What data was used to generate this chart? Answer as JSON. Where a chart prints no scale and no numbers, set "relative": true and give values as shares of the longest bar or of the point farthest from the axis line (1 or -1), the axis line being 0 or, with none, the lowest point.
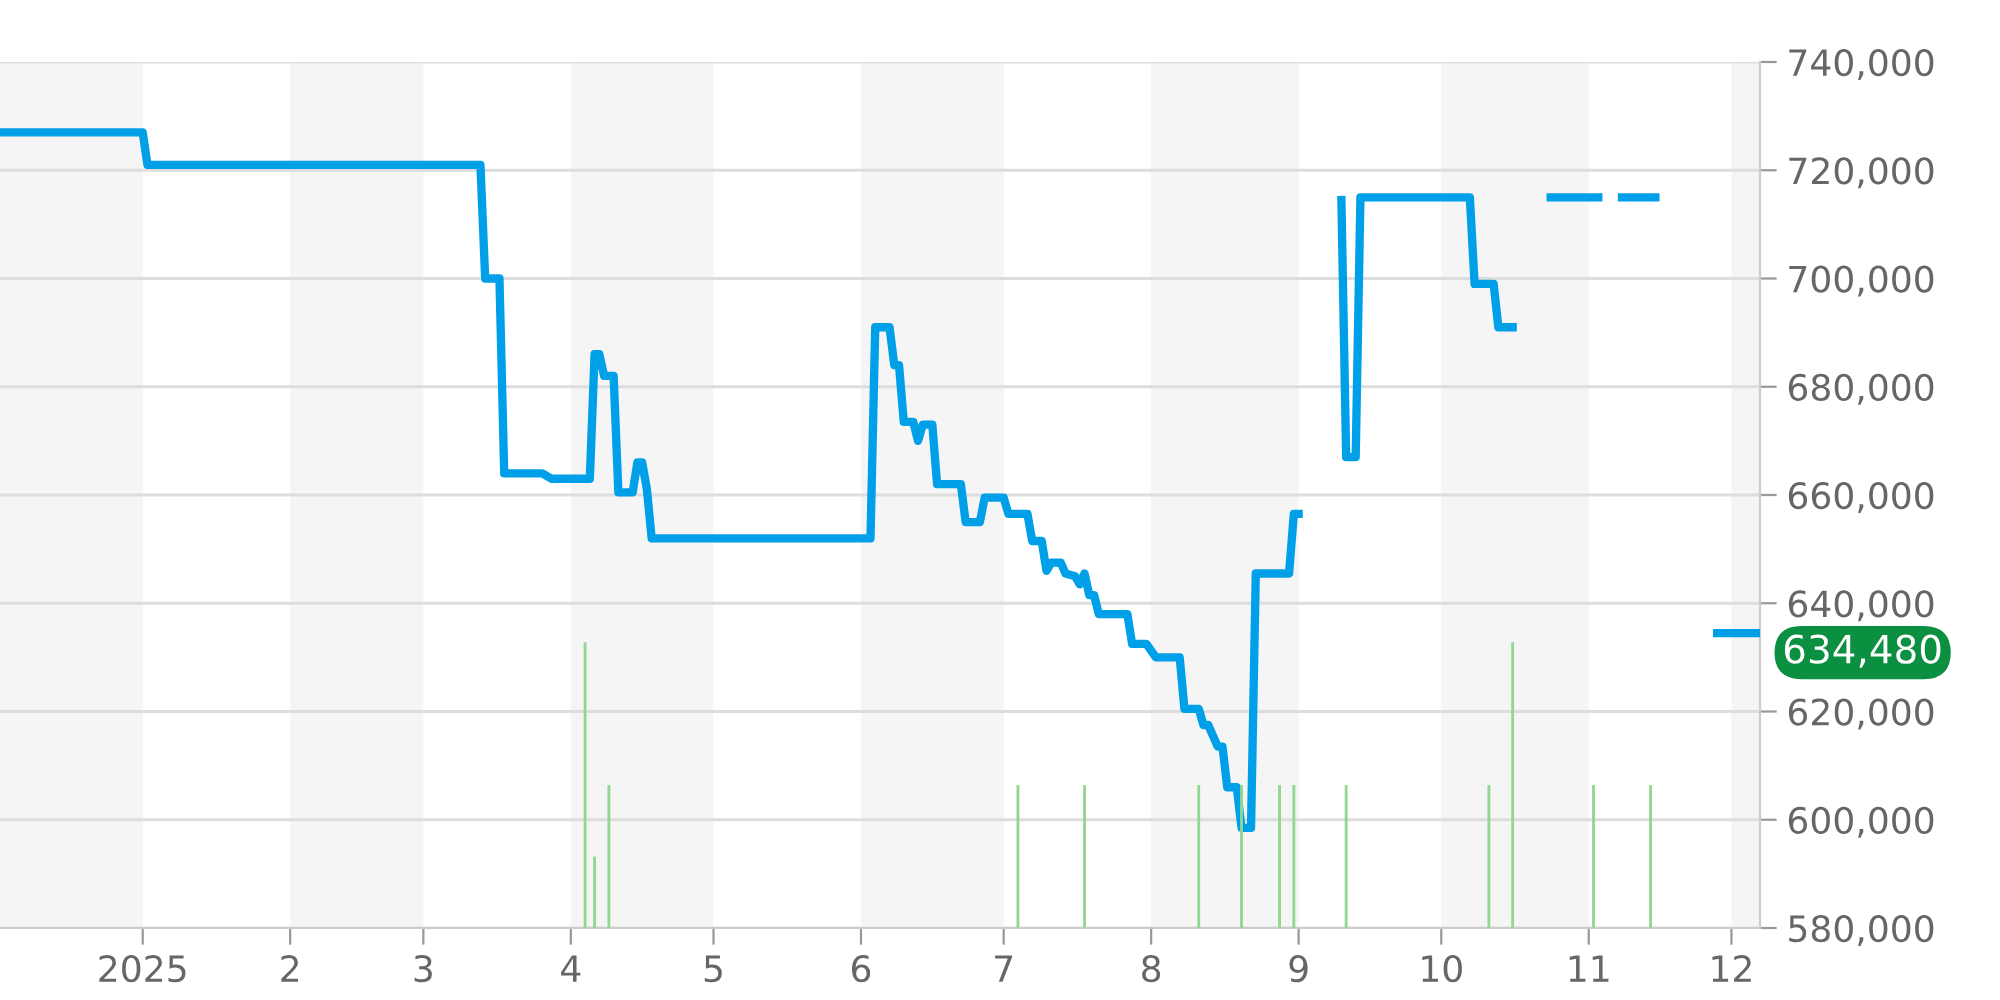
{
  "chart_data": [
    {
      "type": "line",
      "x": [
        "2024-12-02",
        "2025-01-01",
        "2025-01-02",
        "2025-03-13",
        "2025-03-14",
        "2025-03-17",
        "2025-03-18",
        "2025-03-26",
        "2025-03-28",
        "2025-04-05",
        "2025-04-06",
        "2025-04-07",
        "2025-04-08",
        "2025-04-10",
        "2025-04-11",
        "2025-04-14",
        "2025-04-15",
        "2025-04-16",
        "2025-04-17",
        "2025-04-18",
        "2025-06-03",
        "2025-06-04",
        "2025-06-07",
        "2025-06-08",
        "2025-06-09",
        "2025-06-10",
        "2025-06-12",
        "2025-06-13",
        "2025-06-14",
        "2025-06-16",
        "2025-06-17",
        "2025-06-22",
        "2025-06-23",
        "2025-06-26",
        "2025-06-27",
        "2025-07-01",
        "2025-07-02",
        "2025-07-06",
        "2025-07-07",
        "2025-07-09",
        "2025-07-10",
        "2025-07-11",
        "2025-07-13",
        "2025-07-14",
        "2025-07-16",
        "2025-07-17",
        "2025-07-18",
        "2025-07-19",
        "2025-07-20",
        "2025-07-21",
        "2025-07-27",
        "2025-07-28",
        "2025-07-31",
        "2025-08-02",
        "2025-08-07",
        "2025-08-08",
        "2025-08-11",
        "2025-08-12",
        "2025-08-13",
        "2025-08-15",
        "2025-08-16",
        "2025-08-17",
        "2025-08-19",
        "2025-08-20",
        "2025-08-22",
        "2025-08-23",
        "2025-08-30",
        "2025-08-31",
        "2025-09-01",
        "2025-09-05",
        "2025-09-10",
        "2025-09-11",
        "2025-09-13",
        "2025-09-14",
        "2025-10-07",
        "2025-10-08",
        "2025-10-12",
        "2025-10-13",
        "2025-10-16",
        "2025-10-20",
        "2025-10-24",
        "2025-11-03",
        "2025-11-05",
        "2025-11-08",
        "2025-11-15",
        "2025-11-22",
        "2025-11-28",
        "2025-12-07"
      ],
      "series": [
        {
          "color": "#00a0e9",
          "values": [
            727000,
            727000,
            721000,
            721000,
            700000,
            700000,
            664000,
            664000,
            663000,
            663000,
            686000,
            686000,
            682000,
            682000,
            660500,
            660500,
            666000,
            666000,
            661000,
            652000,
            652000,
            691000,
            691000,
            684000,
            684000,
            673500,
            673500,
            670000,
            673000,
            673000,
            662000,
            662000,
            655000,
            655000,
            659500,
            659500,
            656500,
            656500,
            651500,
            651500,
            646000,
            647500,
            647500,
            645500,
            645000,
            643500,
            645500,
            641500,
            641500,
            638000,
            638000,
            632500,
            632500,
            630000,
            630000,
            620500,
            620500,
            617500,
            617500,
            613500,
            613500,
            606000,
            606000,
            598500,
            598500,
            645500,
            645500,
            656500,
            656500,
            null,
            714500,
            667000,
            667000,
            715000,
            715000,
            699000,
            699000,
            691000,
            691000,
            null,
            715000,
            715000,
            null,
            715000,
            715000,
            null,
            634480,
            634480
          ]
        }
      ],
      "xlim": [
        "2024-12-02",
        "2025-12-07"
      ],
      "xticks": [
        {
          "value": "2025-01-01",
          "label": "2025"
        },
        {
          "value": "2025-02-01",
          "label": "2"
        },
        {
          "value": "2025-03-01",
          "label": "3"
        },
        {
          "value": "2025-04-01",
          "label": "4"
        },
        {
          "value": "2025-05-01",
          "label": "5"
        },
        {
          "value": "2025-06-01",
          "label": "6"
        },
        {
          "value": "2025-07-01",
          "label": "7"
        },
        {
          "value": "2025-08-01",
          "label": "8"
        },
        {
          "value": "2025-09-01",
          "label": "9"
        },
        {
          "value": "2025-10-01",
          "label": "10"
        },
        {
          "value": "2025-11-01",
          "label": "11"
        },
        {
          "value": "2025-12-01",
          "label": "12"
        }
      ],
      "ylim": [
        580000,
        740000
      ],
      "yticks": [
        {
          "value": 580000,
          "label": "580,000"
        },
        {
          "value": 600000,
          "label": "600,000"
        },
        {
          "value": 620000,
          "label": "620,000"
        },
        {
          "value": 640000,
          "label": "640,000"
        },
        {
          "value": 660000,
          "label": "660,000"
        },
        {
          "value": 680000,
          "label": "680,000"
        },
        {
          "value": 700000,
          "label": "700,000"
        },
        {
          "value": 720000,
          "label": "720,000"
        },
        {
          "value": 740000,
          "label": "740,000"
        }
      ],
      "bands": [
        {
          "axis": "x",
          "from": "2024-12-02",
          "to": "2025-01-01",
          "color": "#f5f5f5"
        },
        {
          "axis": "x",
          "from": "2025-02-01",
          "to": "2025-03-01",
          "color": "#f5f5f5"
        },
        {
          "axis": "x",
          "from": "2025-04-01",
          "to": "2025-05-01",
          "color": "#f5f5f5"
        },
        {
          "axis": "x",
          "from": "2025-06-01",
          "to": "2025-07-01",
          "color": "#f5f5f5"
        },
        {
          "axis": "x",
          "from": "2025-08-01",
          "to": "2025-09-01",
          "color": "#f5f5f5"
        },
        {
          "axis": "x",
          "from": "2025-10-01",
          "to": "2025-11-01",
          "color": "#f5f5f5"
        },
        {
          "axis": "x",
          "from": "2025-12-01",
          "to": "2025-12-07",
          "color": "#f5f5f5"
        }
      ],
      "annotations": [
        {
          "text": "634,480",
          "x": "2025-12-07",
          "y": 634480
        }
      ],
      "grid": "y"
    },
    {
      "type": "bar",
      "relative": true,
      "x": [
        "2025-04-04",
        "2025-04-06",
        "2025-04-09",
        "2025-07-04",
        "2025-07-18",
        "2025-08-11",
        "2025-08-20",
        "2025-08-28",
        "2025-08-31",
        "2025-09-11",
        "2025-10-11",
        "2025-10-16",
        "2025-11-02",
        "2025-11-14"
      ],
      "values": [
        1,
        0.25,
        0.5,
        0.5,
        0.5,
        0.5,
        0.5,
        0.5,
        0.5,
        0.5,
        0.5,
        1,
        0.5,
        0.5
      ],
      "color": "#90d890",
      "xlim": [
        "2024-12-02",
        "2025-12-07"
      ],
      "tick_labels": false
    }
  ]
}
